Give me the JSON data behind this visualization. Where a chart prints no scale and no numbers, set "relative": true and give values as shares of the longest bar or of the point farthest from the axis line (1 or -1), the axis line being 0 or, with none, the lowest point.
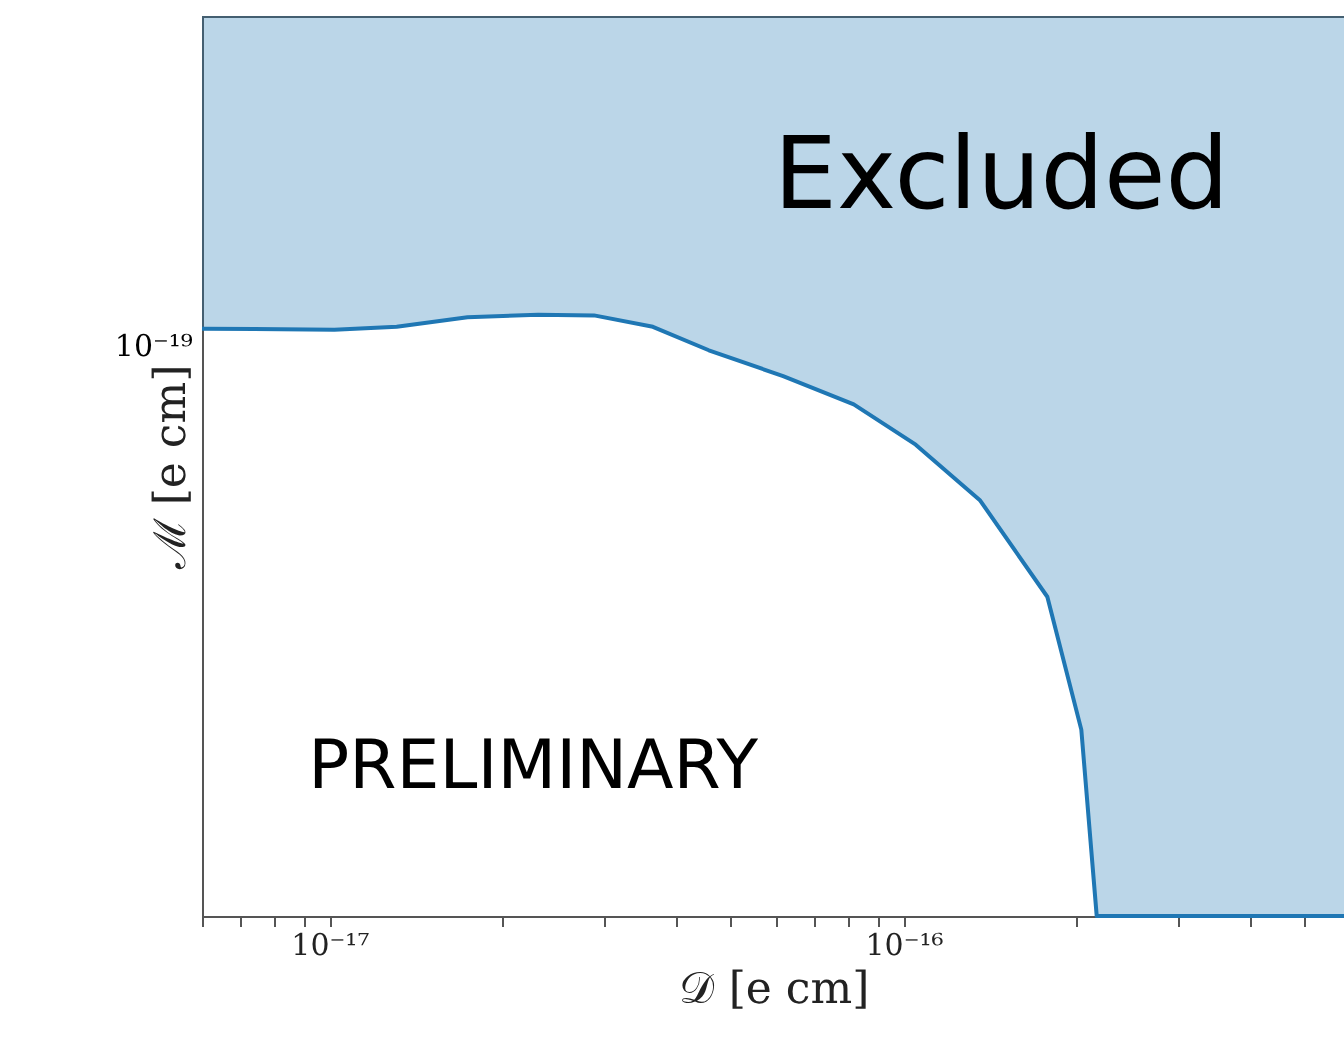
{
  "chart_data": {
    "type": "area",
    "xlabel": "𝒟 [e cm]",
    "ylabel": "ℳ [e cm]",
    "log": "x",
    "grid": false,
    "relative": true,
    "x": [
      6e-18,
      1.02e-17,
      1.31e-17,
      1.74e-17,
      2.31e-17,
      2.89e-17,
      3.66e-17,
      4.58e-17,
      6.17e-17,
      8.19e-17,
      1.05e-16,
      1.36e-16,
      1.78e-16,
      2.04e-16,
      2.17e-16,
      5.85e-16
    ],
    "series": [
      {
        "color": "#1f77b4",
        "values": [
          0.977,
          0.975,
          0.98,
          0.996,
          1,
          0.999,
          0.98,
          0.941,
          0.898,
          0.851,
          0.784,
          0.691,
          0.531,
          0.31,
          0,
          0
        ]
      }
    ],
    "xlim": [
      6e-18,
      5.85e-16
    ],
    "xticks": [
      {
        "value": 6e-18,
        "label": null
      },
      {
        "value": 7e-18,
        "label": null
      },
      {
        "value": 8e-18,
        "label": null
      },
      {
        "value": 9e-18,
        "label": null
      },
      {
        "value": 1e-17,
        "label": "10⁻¹⁷"
      },
      {
        "value": 2e-17,
        "label": null
      },
      {
        "value": 3e-17,
        "label": null
      },
      {
        "value": 4e-17,
        "label": null
      },
      {
        "value": 5e-17,
        "label": null
      },
      {
        "value": 6e-17,
        "label": null
      },
      {
        "value": 7e-17,
        "label": null
      },
      {
        "value": 8e-17,
        "label": null
      },
      {
        "value": 9e-17,
        "label": null
      },
      {
        "value": 1e-16,
        "label": "10⁻¹⁶"
      },
      {
        "value": 2e-16,
        "label": null
      },
      {
        "value": 3e-16,
        "label": null
      },
      {
        "value": 4e-16,
        "label": null
      },
      {
        "value": 5e-16,
        "label": null
      }
    ],
    "annotations": [
      "Excluded",
      "PRELIMINARY",
      "10⁻¹⁹"
    ]
  }
}
